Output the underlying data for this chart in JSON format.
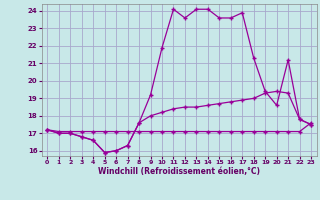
{
  "xlabel": "Windchill (Refroidissement éolien,°C)",
  "xlim": [
    -0.5,
    23.5
  ],
  "ylim": [
    15.7,
    24.4
  ],
  "yticks": [
    16,
    17,
    18,
    19,
    20,
    21,
    22,
    23,
    24
  ],
  "xticks": [
    0,
    1,
    2,
    3,
    4,
    5,
    6,
    7,
    8,
    9,
    10,
    11,
    12,
    13,
    14,
    15,
    16,
    17,
    18,
    19,
    20,
    21,
    22,
    23
  ],
  "bg_color": "#c8e8e8",
  "grid_color": "#a8a8cc",
  "line_color": "#990099",
  "line1_x": [
    0,
    1,
    2,
    3,
    4,
    5,
    6,
    7,
    8,
    9,
    10,
    11,
    12,
    13,
    14,
    15,
    16,
    17,
    18,
    19,
    20,
    21,
    22,
    23
  ],
  "line1_y": [
    17.2,
    17.1,
    17.1,
    17.1,
    17.1,
    17.1,
    17.1,
    17.1,
    17.1,
    17.1,
    17.1,
    17.1,
    17.1,
    17.1,
    17.1,
    17.1,
    17.1,
    17.1,
    17.1,
    17.1,
    17.1,
    17.1,
    17.1,
    17.6
  ],
  "line2_x": [
    0,
    1,
    2,
    3,
    4,
    5,
    6,
    7,
    8,
    9,
    10,
    11,
    12,
    13,
    14,
    15,
    16,
    17,
    18,
    19,
    20,
    21,
    22,
    23
  ],
  "line2_y": [
    17.2,
    17.0,
    17.0,
    16.8,
    16.6,
    15.9,
    16.0,
    16.3,
    17.6,
    18.0,
    18.2,
    18.4,
    18.5,
    18.5,
    18.6,
    18.7,
    18.8,
    18.9,
    19.0,
    19.3,
    19.4,
    19.3,
    17.8,
    17.5
  ],
  "line3_x": [
    0,
    1,
    2,
    3,
    4,
    5,
    6,
    7,
    8,
    9,
    10,
    11,
    12,
    13,
    14,
    15,
    16,
    17,
    18,
    19,
    20,
    21,
    22,
    23
  ],
  "line3_y": [
    17.2,
    17.0,
    17.0,
    16.8,
    16.6,
    15.9,
    16.0,
    16.3,
    17.6,
    19.2,
    21.9,
    24.1,
    23.6,
    24.1,
    24.1,
    23.6,
    23.6,
    23.9,
    21.3,
    19.4,
    18.6,
    21.2,
    17.8,
    17.5
  ]
}
